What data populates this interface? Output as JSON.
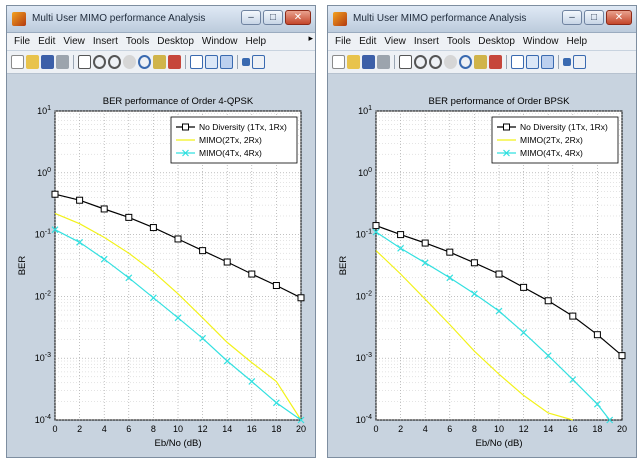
{
  "windows": [
    {
      "title": "Multi User MIMO performance Analysis",
      "menu": [
        "File",
        "Edit",
        "View",
        "Insert",
        "Tools",
        "Desktop",
        "Window",
        "Help"
      ],
      "chart_data": {
        "type": "line",
        "title": "BER performance of Order 4-QPSK",
        "xlabel": "Eb/No (dB)",
        "ylabel": "BER",
        "yscale": "log",
        "xlim": [
          0,
          20
        ],
        "ylim": [
          0.0001,
          10
        ],
        "grid": true,
        "legend_position": "top-right",
        "x_ticks": [
          "0",
          "2",
          "4",
          "6",
          "8",
          "10",
          "12",
          "14",
          "16",
          "18",
          "20"
        ],
        "y_ticks": [
          "10-4",
          "10-3",
          "10-2",
          "10-1",
          "100",
          "101"
        ],
        "series": [
          {
            "name": "No Diversity (1Tx, 1Rx)",
            "color": "#000000",
            "marker": "square",
            "x": [
              0,
              2,
              4,
              6,
              8,
              10,
              12,
              14,
              16,
              18,
              20
            ],
            "y": [
              0.45,
              0.36,
              0.26,
              0.19,
              0.13,
              0.085,
              0.055,
              0.036,
              0.023,
              0.015,
              0.0095
            ]
          },
          {
            "name": "MIMO(2Tx, 2Rx)",
            "color": "#f2f21a",
            "marker": "none",
            "x": [
              0,
              2,
              4,
              6,
              8,
              10,
              12,
              14,
              16,
              18,
              20
            ],
            "y": [
              0.22,
              0.15,
              0.09,
              0.05,
              0.025,
              0.011,
              0.0045,
              0.0018,
              0.00085,
              0.00042,
              0.0001
            ]
          },
          {
            "name": "MIMO(4Tx, 4Rx)",
            "color": "#33e0e0",
            "marker": "x",
            "x": [
              0,
              2,
              4,
              6,
              8,
              10,
              12,
              14,
              16,
              18,
              20
            ],
            "y": [
              0.12,
              0.075,
              0.04,
              0.02,
              0.0095,
              0.0045,
              0.0021,
              0.0009,
              0.00042,
              0.00019,
              0.0001
            ]
          }
        ]
      }
    },
    {
      "title": "Multi User MIMO performance Analysis",
      "menu": [
        "File",
        "Edit",
        "View",
        "Insert",
        "Tools",
        "Desktop",
        "Window",
        "Help"
      ],
      "chart_data": {
        "type": "line",
        "title": "BER performance of Order BPSK",
        "xlabel": "Eb/No (dB)",
        "ylabel": "BER",
        "yscale": "log",
        "xlim": [
          0,
          20
        ],
        "ylim": [
          0.0001,
          10
        ],
        "grid": true,
        "legend_position": "top-right",
        "x_ticks": [
          "0",
          "2",
          "4",
          "6",
          "8",
          "10",
          "12",
          "14",
          "16",
          "18",
          "20"
        ],
        "y_ticks": [
          "10-4",
          "10-3",
          "10-2",
          "10-1",
          "100",
          "101"
        ],
        "series": [
          {
            "name": "No Diversity (1Tx, 1Rx)",
            "color": "#000000",
            "marker": "square",
            "x": [
              0,
              2,
              4,
              6,
              8,
              10,
              12,
              14,
              16,
              18,
              20
            ],
            "y": [
              0.14,
              0.1,
              0.073,
              0.052,
              0.035,
              0.023,
              0.014,
              0.0085,
              0.0048,
              0.0024,
              0.0011
            ]
          },
          {
            "name": "MIMO(2Tx, 2Rx)",
            "color": "#f2f21a",
            "marker": "none",
            "x": [
              0,
              2,
              4,
              6,
              8,
              10,
              12,
              14,
              16
            ],
            "y": [
              0.055,
              0.023,
              0.009,
              0.0035,
              0.0013,
              0.00055,
              0.00025,
              0.00013,
              0.0001
            ]
          },
          {
            "name": "MIMO(4Tx, 4Rx)",
            "color": "#33e0e0",
            "marker": "x",
            "x": [
              0,
              2,
              4,
              6,
              8,
              10,
              12,
              14,
              16,
              18,
              19
            ],
            "y": [
              0.11,
              0.06,
              0.035,
              0.02,
              0.011,
              0.0058,
              0.0026,
              0.0011,
              0.00045,
              0.00018,
              0.0001
            ]
          }
        ]
      }
    }
  ]
}
